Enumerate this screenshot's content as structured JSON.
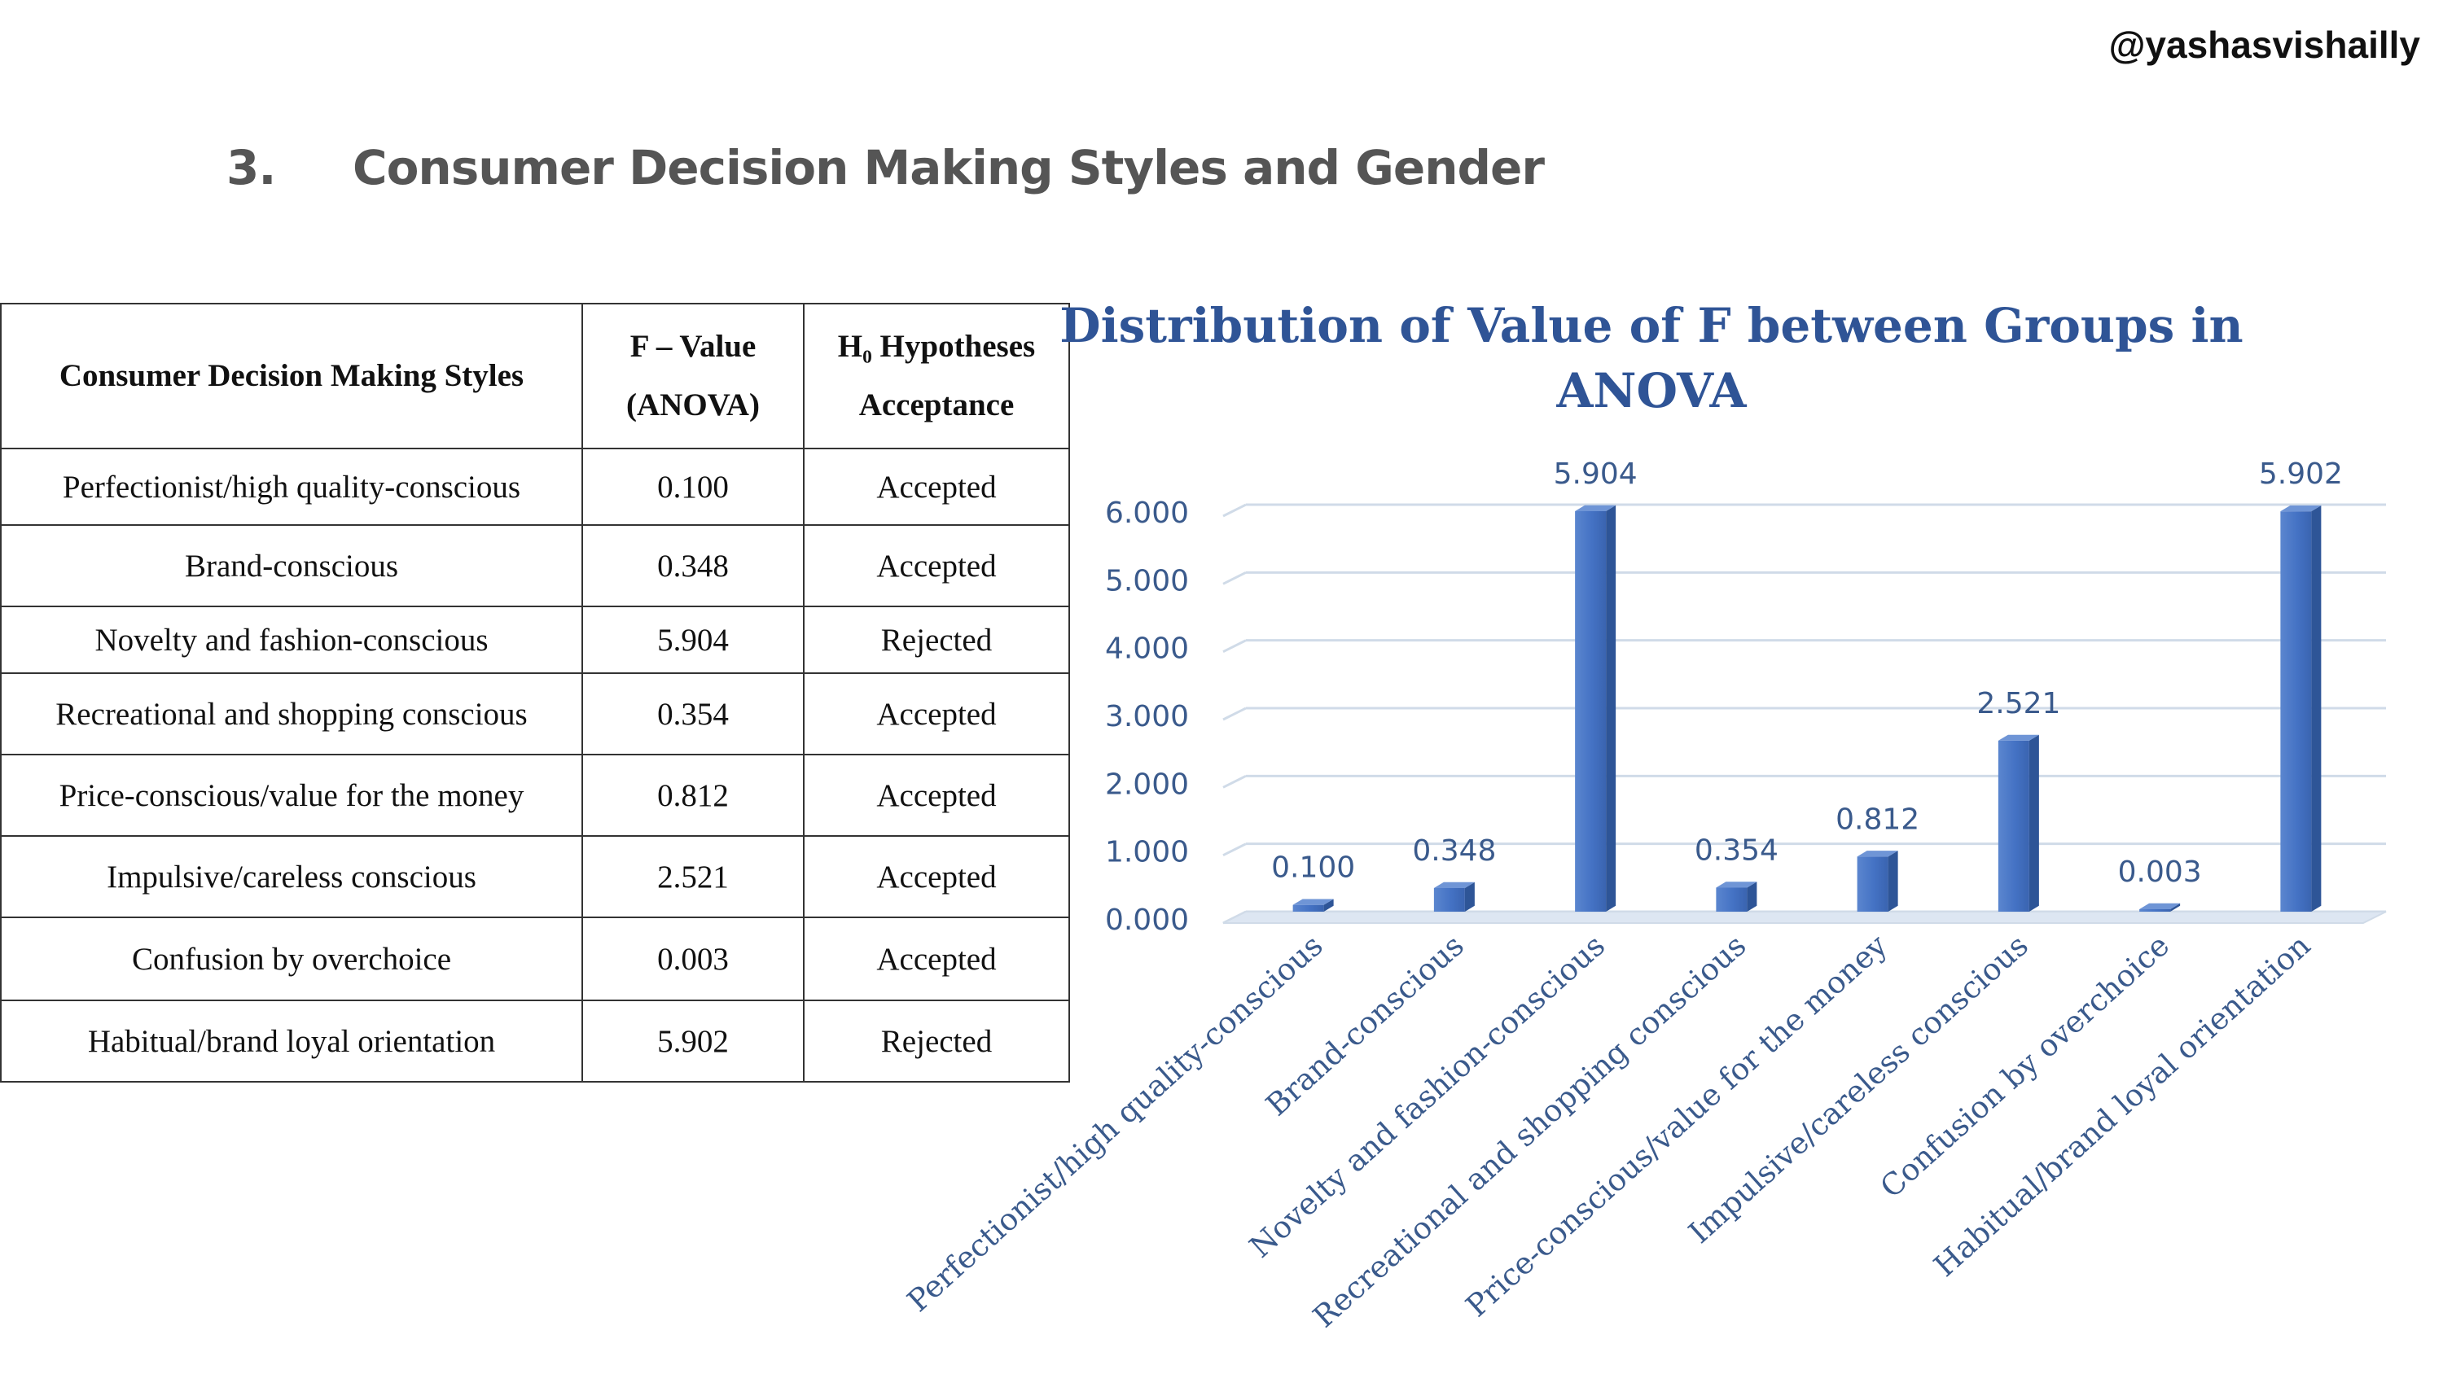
{
  "watermark": "@yashasvishailly",
  "section": {
    "number": "3.",
    "title": "Consumer Decision Making Styles and Gender"
  },
  "table": {
    "headers": {
      "style": "Consumer Decision Making Styles",
      "fvalue_line1": "F – Value",
      "fvalue_line2": "(ANOVA)",
      "hyp_line1": "H₀ Hypotheses",
      "hyp_line2": "Acceptance"
    },
    "rows": [
      {
        "style": "Perfectionist/high quality-conscious",
        "f": "0.100",
        "result": "Accepted"
      },
      {
        "style": "Brand-conscious",
        "f": "0.348",
        "result": "Accepted"
      },
      {
        "style": "Novelty and fashion-conscious",
        "f": "5.904",
        "result": "Rejected"
      },
      {
        "style": "Recreational and shopping conscious",
        "f": "0.354",
        "result": "Accepted"
      },
      {
        "style": "Price-conscious/value for the money",
        "f": "0.812",
        "result": "Accepted"
      },
      {
        "style": "Impulsive/careless conscious",
        "f": "2.521",
        "result": "Accepted"
      },
      {
        "style": "Confusion by overchoice",
        "f": "0.003",
        "result": "Accepted"
      },
      {
        "style": "Habitual/brand loyal orientation",
        "f": "5.902",
        "result": "Rejected"
      }
    ]
  },
  "chart_data": {
    "type": "bar",
    "title": "Distribution of Value of F between Groups in ANOVA",
    "title_line1": "Distribution of Value of F between Groups in",
    "title_line2": "ANOVA",
    "categories": [
      "Perfectionist/high quality-conscious",
      "Brand-conscious",
      "Novelty and fashion-conscious",
      "Recreational and shopping conscious",
      "Price-conscious/value for the money",
      "Impulsive/careless conscious",
      "Confusion by overchoice",
      "Habitual/brand loyal orientation"
    ],
    "values": [
      0.1,
      0.348,
      5.904,
      0.354,
      0.812,
      2.521,
      0.003,
      5.902
    ],
    "value_labels": [
      "0.100",
      "0.348",
      "5.904",
      "0.354",
      "0.812",
      "2.521",
      "0.003",
      "5.902"
    ],
    "yticks": [
      "0.000",
      "1.000",
      "2.000",
      "3.000",
      "4.000",
      "5.000",
      "6.000"
    ],
    "ylim": [
      0,
      6
    ],
    "xlabel": "",
    "ylabel": "",
    "grid": true,
    "colors": {
      "title": "#2f5496",
      "bar": "#4472c4",
      "bar_dark": "#2e5597",
      "bar_light": "#6f95d6",
      "axis_text": "#3a5a8c",
      "grid": "#d0dbe8"
    }
  }
}
